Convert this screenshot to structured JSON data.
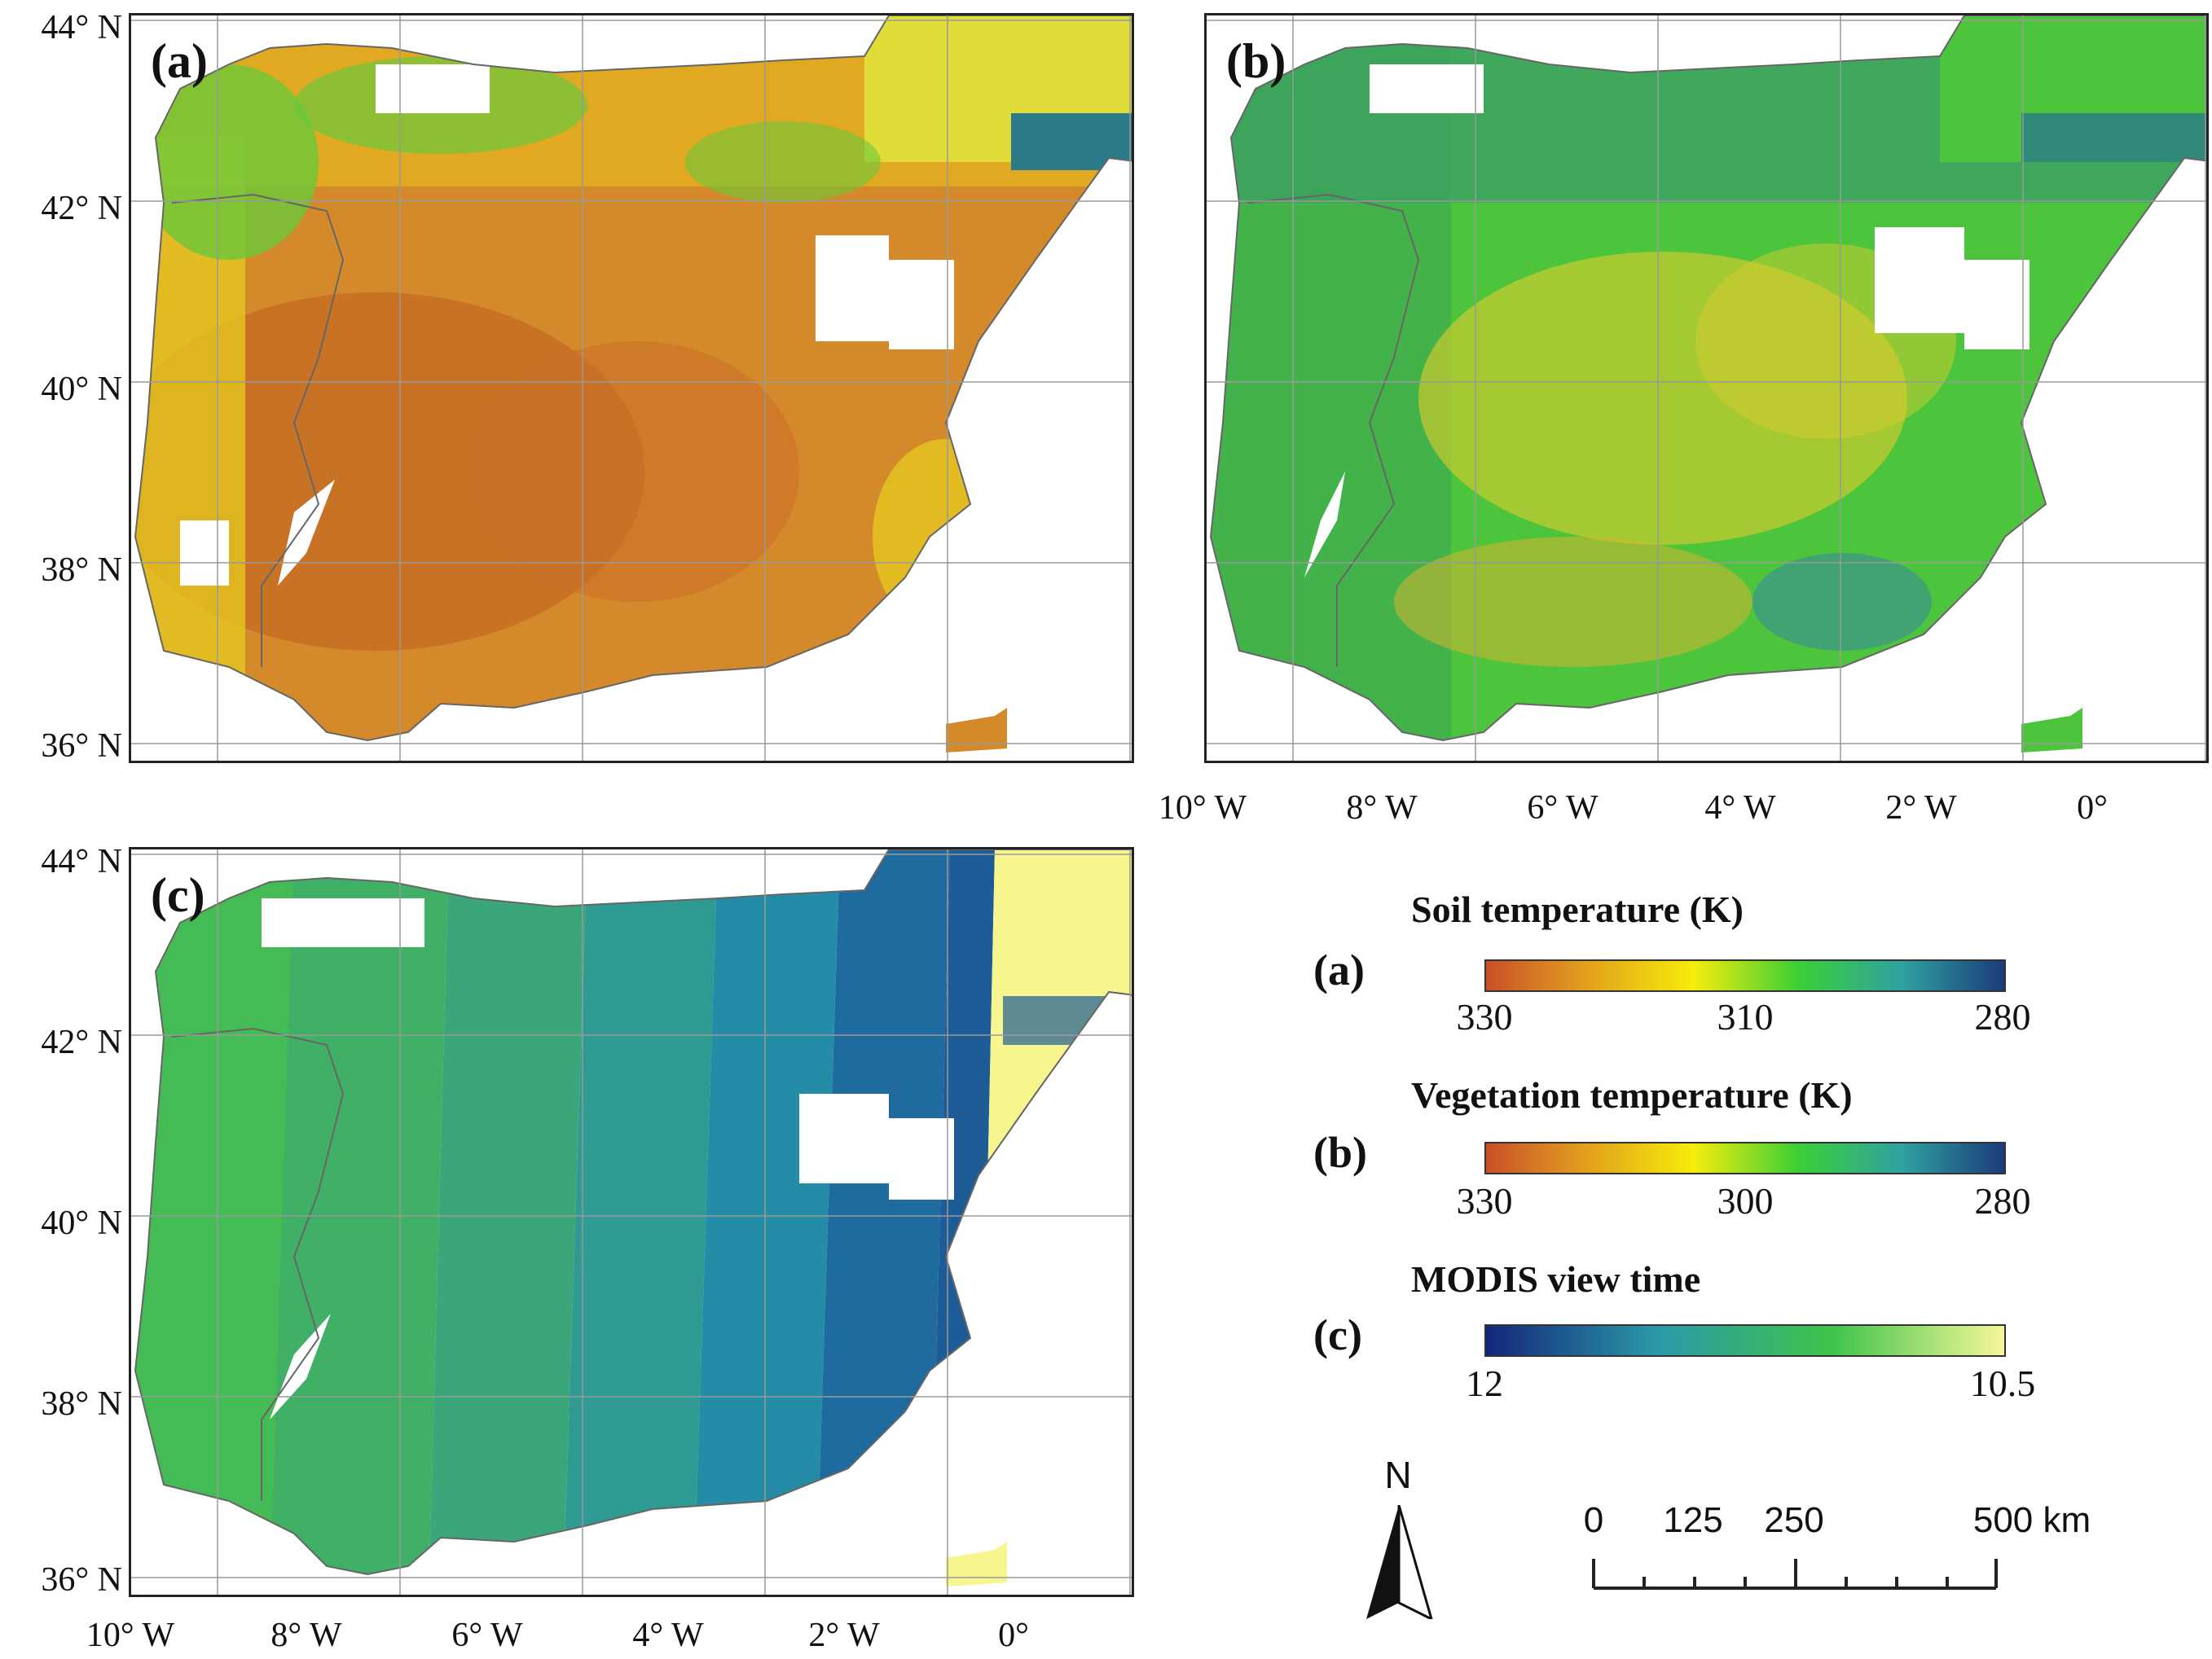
{
  "panels": {
    "a": {
      "label": "(a)"
    },
    "b": {
      "label": "(b)"
    },
    "c": {
      "label": "(c)"
    }
  },
  "axes": {
    "lat_labels": [
      "44° N",
      "42° N",
      "40° N",
      "38° N",
      "36° N"
    ],
    "lon_labels": [
      "10° W",
      "8° W",
      "6° W",
      "4° W",
      "2° W",
      "0°"
    ]
  },
  "legend": {
    "soil": {
      "tag": "(a)",
      "title": "Soil temperature (K)",
      "ticks": [
        "330",
        "310",
        "280"
      ],
      "colors": [
        "#c9502a",
        "#e3a21d",
        "#f5ec0c",
        "#3ccf34",
        "#2ea3a0",
        "#1b3c7a"
      ]
    },
    "veg": {
      "tag": "(b)",
      "title": "Vegetation temperature (K)",
      "ticks": [
        "330",
        "300",
        "280"
      ],
      "colors": [
        "#c9502a",
        "#e3a21d",
        "#f5ec0c",
        "#3ccf34",
        "#2ea3a0",
        "#1b3c7a"
      ]
    },
    "modis": {
      "tag": "(c)",
      "title": "MODIS view time",
      "ticks": [
        "12",
        "10.5"
      ],
      "colors": [
        "#14267a",
        "#2b9aa8",
        "#3fc34a",
        "#f6f79a"
      ]
    }
  },
  "north_arrow": {
    "label": "N"
  },
  "scale_bar": {
    "labels": [
      "0",
      "125",
      "250",
      "500 km"
    ]
  },
  "colors": {
    "soil_main": "#d48a2a",
    "soil_dark": "#c46a25",
    "soil_yellow": "#e8d020",
    "soil_green": "#6ac83a",
    "veg_green": "#4cc43c",
    "veg_teal": "#3a9c8a",
    "veg_yellow": "#d6cc2e",
    "modis_band1": "#45bb55",
    "modis_band2": "#3aa67a",
    "modis_band3": "#2f9a92",
    "modis_band4": "#248ca6",
    "modis_band5": "#1f6ba0",
    "modis_band6": "#1d5c96",
    "modis_yellow": "#f6f58e"
  }
}
